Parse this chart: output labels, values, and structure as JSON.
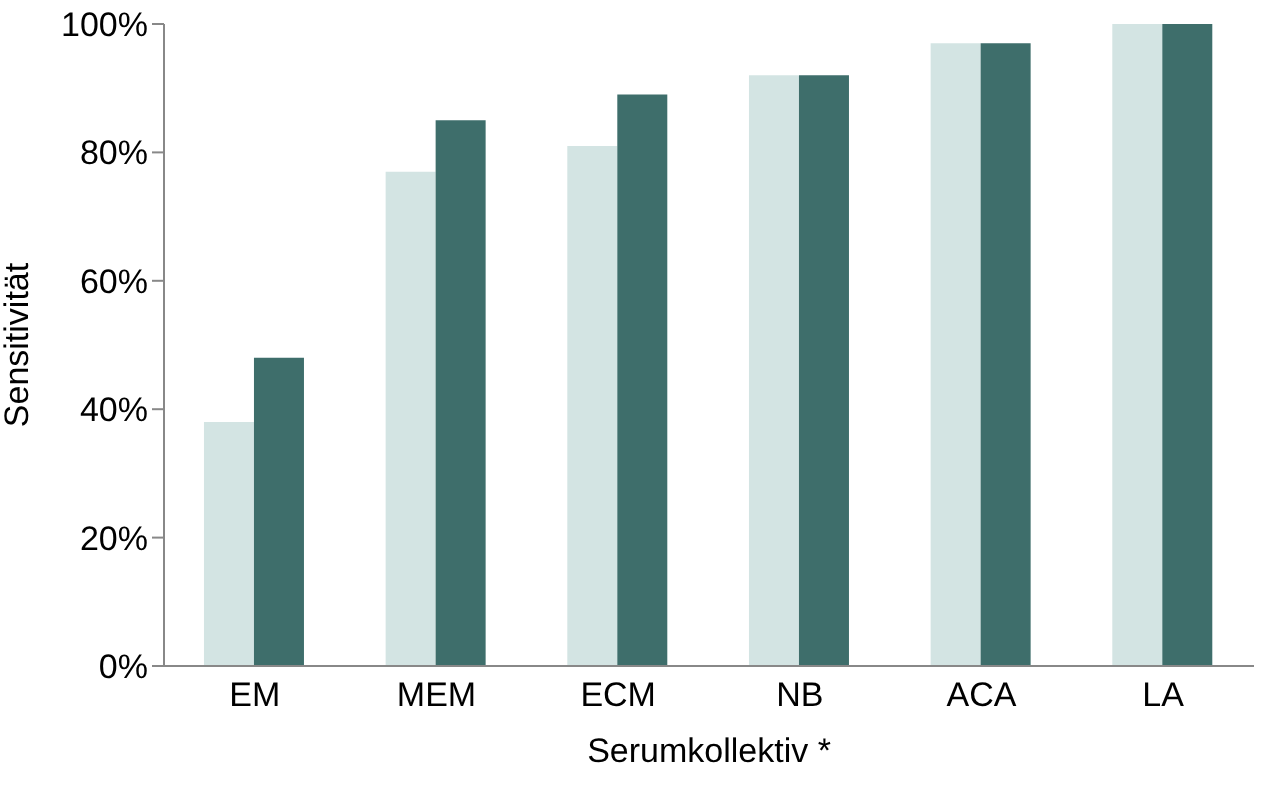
{
  "chart_data": {
    "type": "bar",
    "xlabel": "Serumkollektiv *",
    "ylabel": "Sensitivität",
    "categories": [
      "EM",
      "MEM",
      "ECM",
      "NB",
      "ACA",
      "LA"
    ],
    "series": [
      {
        "color": "#d3e4e3",
        "values": [
          38,
          77,
          81,
          92,
          97,
          100
        ]
      },
      {
        "color": "#3e6e6b",
        "values": [
          48,
          85,
          89,
          92,
          97,
          100
        ]
      }
    ],
    "ylim": [
      0,
      100
    ],
    "yticks": [
      {
        "value": 0,
        "label": "0%"
      },
      {
        "value": 20,
        "label": "20%"
      },
      {
        "value": 40,
        "label": "40%"
      },
      {
        "value": 60,
        "label": "60%"
      },
      {
        "value": 80,
        "label": "80%"
      },
      {
        "value": 100,
        "label": "100%"
      }
    ],
    "grid": false,
    "legend": false
  }
}
